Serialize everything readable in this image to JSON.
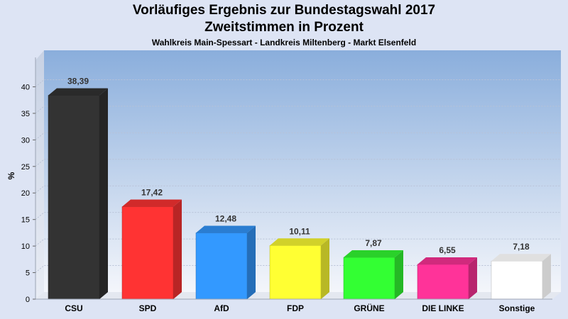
{
  "chart_data": {
    "type": "bar",
    "title": "Vorläufiges Ergebnis zur Bundestagswahl 2017",
    "subtitle": "Zweitstimmen in Prozent",
    "caption": "Wahlkreis Main-Spessart - Landkreis Miltenberg - Markt Elsenfeld",
    "ylabel": "%",
    "xlabel": "",
    "ylim": [
      0,
      45
    ],
    "yticks": [
      0,
      5,
      10,
      15,
      20,
      25,
      30,
      35,
      40
    ],
    "categories": [
      "CSU",
      "SPD",
      "AfD",
      "FDP",
      "GRÜNE",
      "DIE LINKE",
      "Sonstige"
    ],
    "values": [
      38.39,
      17.42,
      12.48,
      10.11,
      7.87,
      6.55,
      7.18
    ],
    "value_labels": [
      "38,39",
      "17,42",
      "12,48",
      "10,11",
      "7,87",
      "6,55",
      "7,18"
    ],
    "colors": [
      "#333333",
      "#ff3333",
      "#3399ff",
      "#ffff33",
      "#33ff33",
      "#ff3399",
      "#ffffff"
    ],
    "grid": true,
    "legend": "none"
  }
}
